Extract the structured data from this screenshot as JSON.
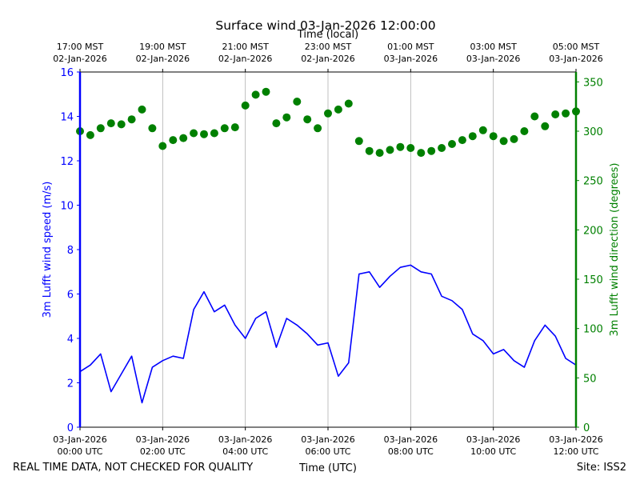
{
  "chart_data": {
    "type": "line",
    "title": "Surface wind 03-Jan-2026 12:00:00",
    "top_xlabel": "Time (local)",
    "xlabel": "Time (UTC)",
    "footer_left": "REAL TIME DATA, NOT CHECKED FOR QUALITY",
    "footer_right": "Site: ISS2",
    "x_range_hours": [
      0,
      12
    ],
    "bottom_ticks": [
      {
        "hour": 0,
        "date": "03-Jan-2026",
        "time": "00:00 UTC"
      },
      {
        "hour": 2,
        "date": "03-Jan-2026",
        "time": "02:00 UTC"
      },
      {
        "hour": 4,
        "date": "03-Jan-2026",
        "time": "04:00 UTC"
      },
      {
        "hour": 6,
        "date": "03-Jan-2026",
        "time": "06:00 UTC"
      },
      {
        "hour": 8,
        "date": "03-Jan-2026",
        "time": "08:00 UTC"
      },
      {
        "hour": 10,
        "date": "03-Jan-2026",
        "time": "10:00 UTC"
      },
      {
        "hour": 12,
        "date": "03-Jan-2026",
        "time": "12:00 UTC"
      }
    ],
    "top_ticks": [
      {
        "hour": 0,
        "time": "17:00 MST",
        "date": "02-Jan-2026"
      },
      {
        "hour": 2,
        "time": "19:00 MST",
        "date": "02-Jan-2026"
      },
      {
        "hour": 4,
        "time": "21:00 MST",
        "date": "02-Jan-2026"
      },
      {
        "hour": 6,
        "time": "23:00 MST",
        "date": "02-Jan-2026"
      },
      {
        "hour": 8,
        "time": "01:00 MST",
        "date": "03-Jan-2026"
      },
      {
        "hour": 10,
        "time": "03:00 MST",
        "date": "03-Jan-2026"
      },
      {
        "hour": 12,
        "time": "05:00 MST",
        "date": "03-Jan-2026"
      }
    ],
    "left_axis": {
      "label": "3m Lufft wind speed (m/s)",
      "ylim": [
        0,
        16
      ],
      "ticks": [
        0,
        2,
        4,
        6,
        8,
        10,
        12,
        14,
        16
      ],
      "color": "#0000ff"
    },
    "right_axis": {
      "label": "3m Lufft wind direction (degrees)",
      "ylim": [
        0,
        360
      ],
      "ticks": [
        0,
        50,
        100,
        150,
        200,
        250,
        300,
        350
      ],
      "color": "#008000"
    },
    "series": [
      {
        "name": "wind speed",
        "axis": "left",
        "style": "line",
        "color": "#0000ff",
        "x_hours": [
          0,
          0.25,
          0.5,
          0.75,
          1,
          1.25,
          1.5,
          1.75,
          2,
          2.25,
          2.5,
          2.75,
          3,
          3.25,
          3.5,
          3.75,
          4,
          4.25,
          4.5,
          4.75,
          5,
          5.25,
          5.5,
          5.75,
          6,
          6.25,
          6.5,
          6.75,
          7,
          7.25,
          7.5,
          7.75,
          8,
          8.25,
          8.5,
          8.75,
          9,
          9.25,
          9.5,
          9.75,
          10,
          10.25,
          10.5,
          10.75,
          11,
          11.25,
          11.5,
          11.75,
          12
        ],
        "values": [
          2.5,
          2.8,
          3.3,
          1.6,
          2.4,
          3.2,
          1.1,
          2.7,
          3.0,
          3.2,
          3.1,
          5.3,
          6.1,
          5.2,
          5.5,
          4.6,
          4.0,
          4.9,
          5.2,
          3.6,
          4.9,
          4.6,
          4.2,
          3.7,
          3.8,
          2.3,
          2.9,
          6.9,
          7.0,
          6.3,
          6.8,
          7.2,
          7.3,
          7.0,
          6.9,
          5.9,
          5.7,
          5.3,
          4.2,
          3.9,
          3.3,
          3.5,
          3.0,
          2.7,
          3.9,
          4.6,
          4.1,
          3.1,
          2.8
        ]
      },
      {
        "name": "wind direction",
        "axis": "right",
        "style": "scatter",
        "color": "#008000",
        "x_hours": [
          0,
          0.25,
          0.5,
          0.75,
          1,
          1.25,
          1.5,
          1.75,
          2,
          2.25,
          2.5,
          2.75,
          3,
          3.25,
          3.5,
          3.75,
          4,
          4.25,
          4.5,
          4.75,
          5,
          5.25,
          5.5,
          5.75,
          6,
          6.25,
          6.5,
          6.75,
          7,
          7.25,
          7.5,
          7.75,
          8,
          8.25,
          8.5,
          8.75,
          9,
          9.25,
          9.5,
          9.75,
          10,
          10.25,
          10.5,
          10.75,
          11,
          11.25,
          11.5,
          11.75,
          12
        ],
        "values": [
          300,
          296,
          303,
          308,
          307,
          312,
          322,
          303,
          285,
          291,
          293,
          298,
          297,
          298,
          303,
          304,
          326,
          337,
          340,
          308,
          314,
          330,
          312,
          303,
          318,
          322,
          328,
          290,
          280,
          278,
          281,
          284,
          283,
          278,
          280,
          283,
          287,
          291,
          295,
          301,
          295,
          290,
          292,
          300,
          315,
          305,
          317,
          318,
          320
        ]
      }
    ]
  }
}
